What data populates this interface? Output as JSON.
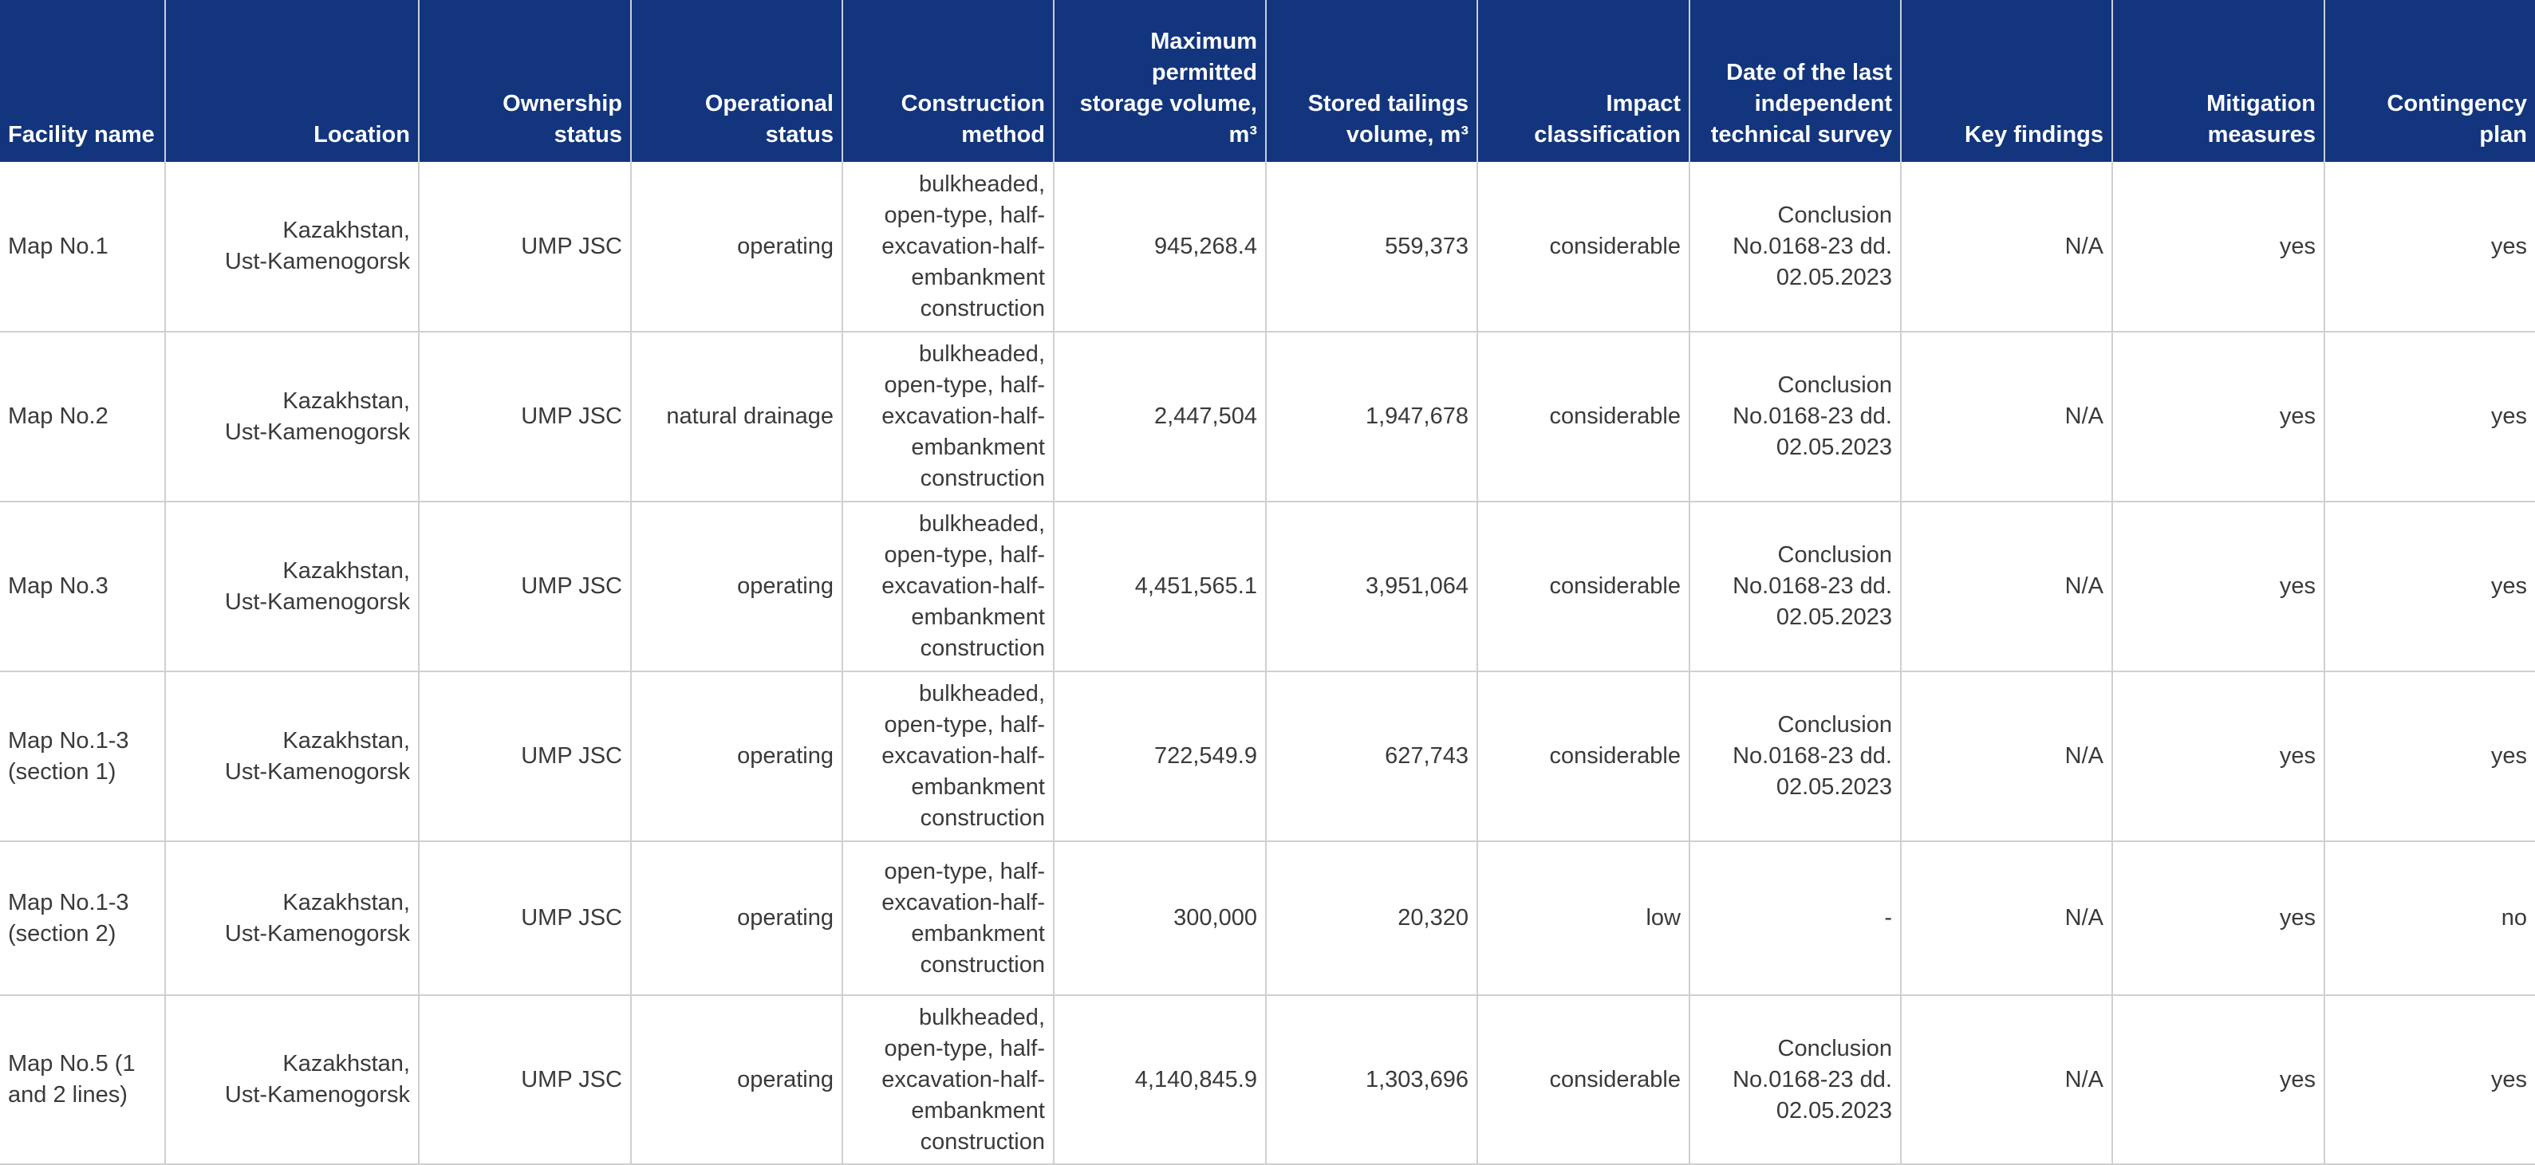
{
  "table": {
    "columns": [
      [
        "Facility name"
      ],
      [
        "Location"
      ],
      [
        "Ownership",
        "status"
      ],
      [
        "Operational",
        "status"
      ],
      [
        "Construction",
        "method"
      ],
      [
        "Maximum",
        "permitted",
        "storage volume,",
        "m³"
      ],
      [
        "Stored tailings",
        "volume, m³"
      ],
      [
        "Impact",
        "classification"
      ],
      [
        "Date of the last",
        "independent",
        "technical survey"
      ],
      [
        "Key findings"
      ],
      [
        "Mitigation",
        "measures"
      ],
      [
        "Contingency",
        "plan"
      ]
    ],
    "rows": [
      {
        "facility_name": [
          "Map No.1"
        ],
        "location": [
          "Kazakhstan,",
          "Ust-Kamenogorsk"
        ],
        "ownership_status": "UMP JSC",
        "operational_status": "operating",
        "construction_method": [
          "bulkheaded,",
          "open-type, half-",
          "excavation-half-",
          "embankment",
          "construction"
        ],
        "max_storage_volume": "945,268.4",
        "stored_tailings_volume": "559,373",
        "impact_classification": "considerable",
        "last_survey": [
          "Conclusion",
          "No.0168-23 dd.",
          "02.05.2023"
        ],
        "key_findings": "N/A",
        "mitigation_measures": "yes",
        "contingency_plan": "yes"
      },
      {
        "facility_name": [
          "Map No.2"
        ],
        "location": [
          "Kazakhstan,",
          "Ust-Kamenogorsk"
        ],
        "ownership_status": "UMP JSC",
        "operational_status": "natural drainage",
        "construction_method": [
          "bulkheaded,",
          "open-type, half-",
          "excavation-half-",
          "embankment",
          "construction"
        ],
        "max_storage_volume": "2,447,504",
        "stored_tailings_volume": "1,947,678",
        "impact_classification": "considerable",
        "last_survey": [
          "Conclusion",
          "No.0168-23 dd.",
          "02.05.2023"
        ],
        "key_findings": "N/A",
        "mitigation_measures": "yes",
        "contingency_plan": "yes"
      },
      {
        "facility_name": [
          "Map No.3"
        ],
        "location": [
          "Kazakhstan,",
          "Ust-Kamenogorsk"
        ],
        "ownership_status": "UMP JSC",
        "operational_status": "operating",
        "construction_method": [
          "bulkheaded,",
          "open-type, half-",
          "excavation-half-",
          "embankment",
          "construction"
        ],
        "max_storage_volume": "4,451,565.1",
        "stored_tailings_volume": "3,951,064",
        "impact_classification": "considerable",
        "last_survey": [
          "Conclusion",
          "No.0168-23 dd.",
          "02.05.2023"
        ],
        "key_findings": "N/A",
        "mitigation_measures": "yes",
        "contingency_plan": "yes"
      },
      {
        "facility_name": [
          "Map No.1-3",
          "(section 1)"
        ],
        "location": [
          "Kazakhstan,",
          "Ust-Kamenogorsk"
        ],
        "ownership_status": "UMP JSC",
        "operational_status": "operating",
        "construction_method": [
          "bulkheaded,",
          "open-type, half-",
          "excavation-half-",
          "embankment",
          "construction"
        ],
        "max_storage_volume": "722,549.9",
        "stored_tailings_volume": "627,743",
        "impact_classification": "considerable",
        "last_survey": [
          "Conclusion",
          "No.0168-23 dd.",
          "02.05.2023"
        ],
        "key_findings": "N/A",
        "mitigation_measures": "yes",
        "contingency_plan": "yes"
      },
      {
        "facility_name": [
          "Map No.1-3",
          "(section 2)"
        ],
        "location": [
          "Kazakhstan,",
          "Ust-Kamenogorsk"
        ],
        "ownership_status": "UMP JSC",
        "operational_status": "operating",
        "construction_method": [
          "open-type, half-",
          "excavation-half-",
          "embankment",
          "construction"
        ],
        "max_storage_volume": "300,000",
        "stored_tailings_volume": "20,320",
        "impact_classification": "low",
        "last_survey": [
          "-"
        ],
        "key_findings": "N/A",
        "mitigation_measures": "yes",
        "contingency_plan": "no"
      },
      {
        "facility_name": [
          "Map No.5 (1",
          "and 2 lines)"
        ],
        "location": [
          "Kazakhstan,",
          "Ust-Kamenogorsk"
        ],
        "ownership_status": "UMP JSC",
        "operational_status": "operating",
        "construction_method": [
          "bulkheaded,",
          "open-type, half-",
          "excavation-half-",
          "embankment",
          "construction"
        ],
        "max_storage_volume": "4,140,845.9",
        "stored_tailings_volume": "1,303,696",
        "impact_classification": "considerable",
        "last_survey": [
          "Conclusion",
          "No.0168-23 dd.",
          "02.05.2023"
        ],
        "key_findings": "N/A",
        "mitigation_measures": "yes",
        "contingency_plan": "yes"
      }
    ]
  }
}
